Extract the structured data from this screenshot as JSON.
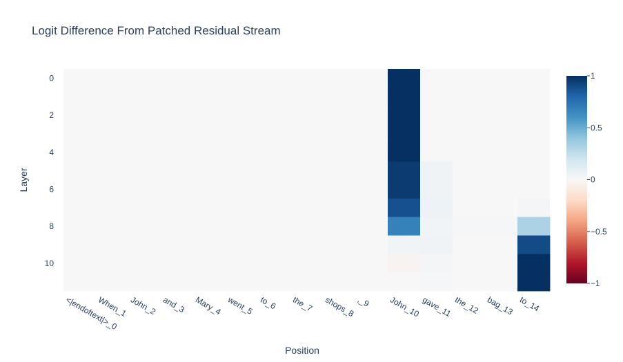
{
  "chart_data": {
    "type": "heatmap",
    "title": "Logit Difference From Patched Residual Stream",
    "xlabel": "Position",
    "ylabel": "Layer",
    "x_categories": [
      "<|endoftext|>_0",
      "When_1",
      "John_2",
      "and_3",
      "Mary_4",
      "went_5",
      "to_6",
      "the_7",
      "shops_8",
      ",_9",
      "John_10",
      "gave_11",
      "the_12",
      "bag_13",
      "to_14"
    ],
    "y_categories": [
      0,
      1,
      2,
      3,
      4,
      5,
      6,
      7,
      8,
      9,
      10,
      11
    ],
    "y_tick_labels": [
      "0",
      "2",
      "4",
      "6",
      "8",
      "10"
    ],
    "y_reversed": true,
    "zmin": -1,
    "zmax": 1,
    "colorscale": "RdBu",
    "colorbar_ticks": [
      "1",
      "0.5",
      "0",
      "−0.5",
      "−1"
    ],
    "colorbar_tick_values": [
      1,
      0.5,
      0,
      -0.5,
      -1
    ],
    "z": [
      [
        0,
        0,
        0,
        0,
        0,
        0,
        0,
        0,
        0,
        0,
        1.0,
        0,
        0,
        0,
        0
      ],
      [
        0,
        0,
        0,
        0,
        0,
        0,
        0,
        0,
        0,
        0,
        1.0,
        0,
        0,
        0,
        0
      ],
      [
        0,
        0,
        0,
        0,
        0,
        0,
        0,
        0,
        0,
        0,
        1.0,
        0,
        0,
        0,
        0
      ],
      [
        0,
        0,
        0,
        0,
        0,
        0,
        0,
        0,
        0,
        0,
        1.0,
        0,
        0,
        0,
        0
      ],
      [
        0,
        0,
        0,
        0,
        0,
        0,
        0,
        0,
        0,
        0,
        1.0,
        0,
        0,
        0,
        0
      ],
      [
        0,
        0,
        0,
        0,
        0,
        0,
        0,
        0,
        0,
        0,
        0.96,
        0.04,
        0,
        0,
        0
      ],
      [
        0,
        0,
        0,
        0,
        0,
        0,
        0,
        0,
        0,
        0,
        0.96,
        0.04,
        0,
        0,
        0
      ],
      [
        0,
        0,
        0,
        0,
        0,
        0,
        0,
        0,
        0,
        0,
        0.88,
        0.06,
        0,
        0,
        0.02
      ],
      [
        0,
        0,
        0,
        0,
        0,
        0,
        0,
        0,
        0,
        0,
        0.68,
        0.03,
        0.01,
        0.01,
        0.32
      ],
      [
        0,
        0,
        0,
        0,
        0,
        0,
        0,
        0,
        0,
        0,
        0.03,
        0.04,
        0,
        0,
        0.9
      ],
      [
        0,
        0,
        0,
        0,
        0,
        0,
        0,
        0,
        0,
        0,
        -0.03,
        0.02,
        0,
        0,
        1.0
      ],
      [
        0,
        0,
        0,
        0,
        0,
        0,
        0,
        0,
        0,
        0,
        0,
        0.01,
        0,
        0,
        1.0
      ]
    ]
  }
}
